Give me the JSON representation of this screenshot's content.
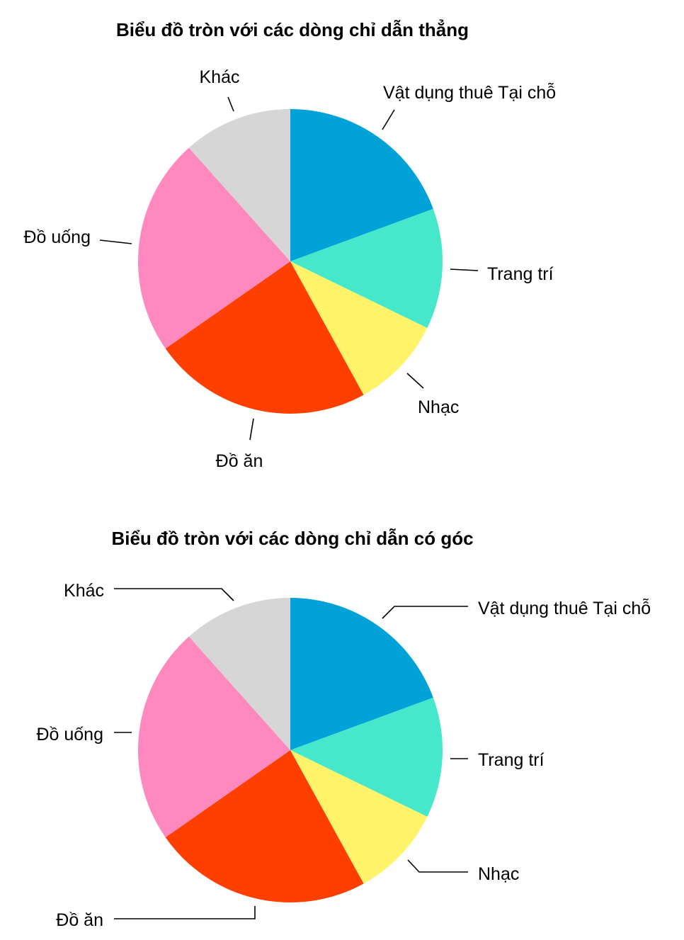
{
  "chart_data": [
    {
      "type": "pie",
      "title": "Biểu đồ tròn với các dòng chỉ dẫn thẳng",
      "leader_style": "straight",
      "start_angle": "12 o'clock, clockwise",
      "categories": [
        "Vật dụng thuê Tại chỗ",
        "Trang trí",
        "Nhạc",
        "Đồ ăn",
        "Đồ uống",
        "Khác"
      ],
      "values": [
        19.4,
        12.8,
        9.8,
        23.3,
        23.1,
        11.6
      ],
      "colors": [
        "#00A2D8",
        "#45E8CA",
        "#FFF36A",
        "#FF3F00",
        "#FF88BE",
        "#D6D6D6"
      ]
    },
    {
      "type": "pie",
      "title": "Biểu đồ tròn với các dòng chỉ dẫn có góc",
      "leader_style": "angled",
      "start_angle": "12 o'clock, clockwise",
      "categories": [
        "Vật dụng thuê Tại chỗ",
        "Trang trí",
        "Nhạc",
        "Đồ ăn",
        "Đồ uống",
        "Khác"
      ],
      "values": [
        19.4,
        12.8,
        9.8,
        23.3,
        23.1,
        11.6
      ],
      "colors": [
        "#00A2D8",
        "#45E8CA",
        "#FFF36A",
        "#FF3F00",
        "#FF88BE",
        "#D6D6D6"
      ]
    }
  ]
}
